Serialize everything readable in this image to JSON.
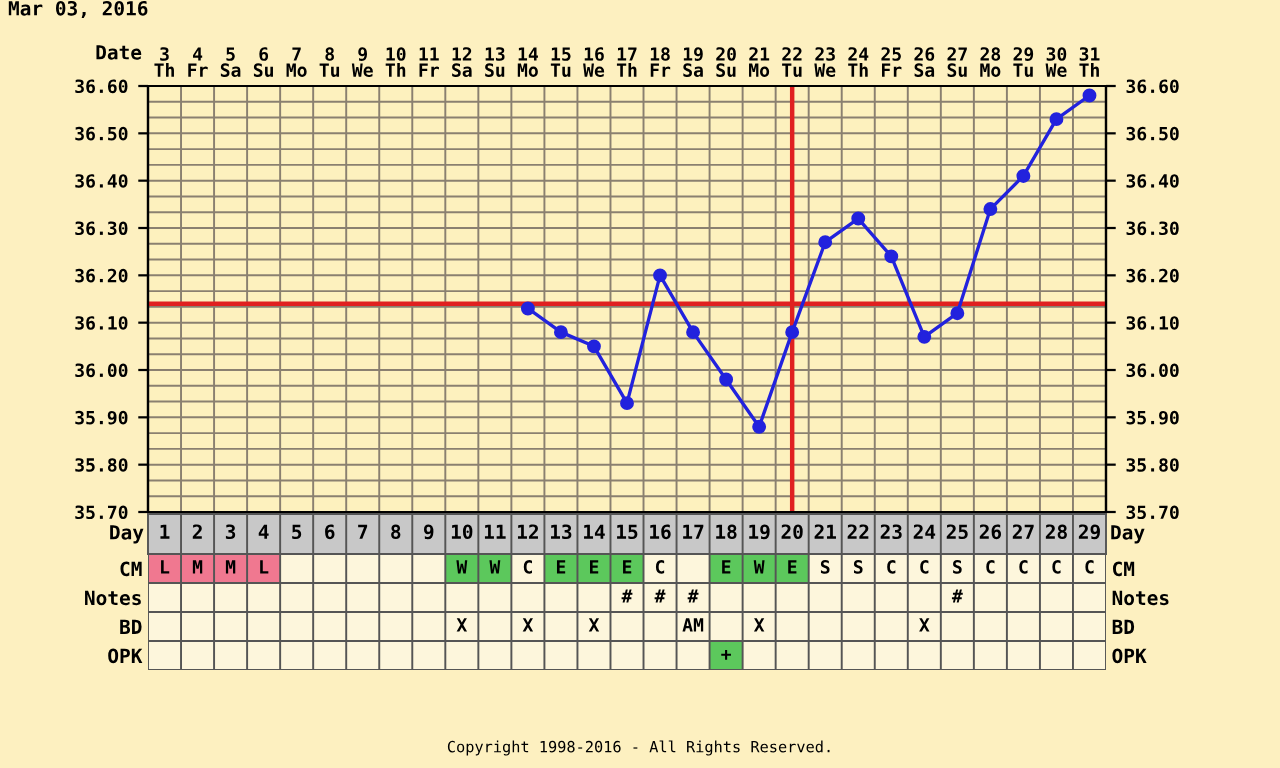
{
  "chart_data": [
    {
      "type": "line",
      "title": "Mar 03, 2016",
      "xlabel": "Date",
      "categories": [
        "3\nTh",
        "4\nFr",
        "5\nSa",
        "6\nSu",
        "7\nMo",
        "8\nTu",
        "9\nWe",
        "10\nTh",
        "11\nFr",
        "12\nSa",
        "13\nSu",
        "14\nMo",
        "15\nTu",
        "16\nWe",
        "17\nTh",
        "18\nFr",
        "19\nSa",
        "20\nSu",
        "21\nMo",
        "22\nTu",
        "23\nWe",
        "24\nTh",
        "25\nFr",
        "26\nSa",
        "27\nSu",
        "28\nMo",
        "29\nTu",
        "30\nWe",
        "31\nTh"
      ],
      "series": [
        {
          "color": "#2222dd",
          "values": [
            null,
            null,
            null,
            null,
            null,
            null,
            null,
            null,
            null,
            null,
            null,
            36.13,
            36.08,
            36.05,
            35.93,
            36.2,
            36.08,
            35.98,
            35.88,
            36.08,
            36.27,
            36.32,
            36.24,
            36.07,
            36.12,
            36.34,
            36.41,
            36.53,
            36.58
          ]
        }
      ],
      "marker": "circle",
      "line_style": "solid",
      "ylim": [
        35.7,
        36.6
      ],
      "yticks": [
        {
          "value": 35.7,
          "label": "35.70"
        },
        {
          "value": 35.8,
          "label": "35.80"
        },
        {
          "value": 35.9,
          "label": "35.90"
        },
        {
          "value": 36.0,
          "label": "36.00"
        },
        {
          "value": 36.1,
          "label": "36.10"
        },
        {
          "value": 36.2,
          "label": "36.20"
        },
        {
          "value": 36.3,
          "label": "36.30"
        },
        {
          "value": 36.4,
          "label": "36.40"
        },
        {
          "value": 36.5,
          "label": "36.50"
        },
        {
          "value": 36.6,
          "label": "36.60"
        }
      ],
      "y2lim": [
        35.7,
        36.6
      ],
      "y2ticks": [
        {
          "value": 35.7,
          "label": "35.70"
        },
        {
          "value": 35.8,
          "label": "35.80"
        },
        {
          "value": 35.9,
          "label": "35.90"
        },
        {
          "value": 36.0,
          "label": "36.00"
        },
        {
          "value": 36.1,
          "label": "36.10"
        },
        {
          "value": 36.2,
          "label": "36.20"
        },
        {
          "value": 36.3,
          "label": "36.30"
        },
        {
          "value": 36.4,
          "label": "36.40"
        },
        {
          "value": 36.5,
          "label": "36.50"
        },
        {
          "value": 36.6,
          "label": "36.60"
        }
      ],
      "grid": true,
      "ref_lines": [
        {
          "axis": "y",
          "value": 36.14,
          "color": "#e02020"
        },
        {
          "axis": "x",
          "value": "22\nTu",
          "color": "#e02020"
        }
      ]
    },
    {
      "type": "heatmap",
      "xlabel": "Day",
      "cells": [
        [
          null,
          null,
          null,
          null,
          null,
          null,
          null,
          null,
          null,
          null,
          null,
          null,
          null,
          null,
          null,
          null,
          null,
          null,
          null,
          null,
          null,
          null,
          null,
          null,
          null,
          null,
          null,
          null,
          null
        ],
        [
          null,
          null,
          null,
          null,
          null,
          null,
          null,
          null,
          null,
          null,
          null,
          null,
          null,
          null,
          null,
          null,
          null,
          null,
          null,
          null,
          null,
          null,
          null,
          null,
          null,
          null,
          null,
          null,
          null
        ],
        [
          null,
          null,
          null,
          null,
          null,
          null,
          null,
          null,
          null,
          null,
          null,
          null,
          null,
          null,
          null,
          null,
          null,
          null,
          null,
          null,
          null,
          null,
          null,
          null,
          null,
          null,
          null,
          null,
          null
        ],
        [
          null,
          null,
          null,
          null,
          null,
          null,
          null,
          null,
          null,
          null,
          null,
          null,
          null,
          null,
          null,
          null,
          null,
          null,
          null,
          null,
          null,
          null,
          null,
          null,
          null,
          null,
          null,
          null,
          null
        ]
      ],
      "categories": [
        "1",
        "2",
        "3",
        "4",
        "5",
        "6",
        "7",
        "8",
        "9",
        "10",
        "11",
        "12",
        "13",
        "14",
        "15",
        "16",
        "17",
        "18",
        "19",
        "20",
        "21",
        "22",
        "23",
        "24",
        "25",
        "26",
        "27",
        "28",
        "29"
      ],
      "y_categories": [
        "CM",
        "Notes",
        "BD",
        "OPK"
      ],
      "y2_categories": [
        "CM",
        "Notes",
        "BD",
        "OPK"
      ],
      "cell_labels": [
        [
          "L",
          "M",
          "M",
          "L",
          null,
          null,
          null,
          null,
          null,
          "W",
          "W",
          "C",
          "E",
          "E",
          "E",
          "C",
          null,
          "E",
          "W",
          "E",
          "S",
          "S",
          "C",
          "C",
          "S",
          "C",
          "C",
          "C",
          "C"
        ],
        [
          null,
          null,
          null,
          null,
          null,
          null,
          null,
          null,
          null,
          null,
          null,
          null,
          null,
          null,
          "#",
          "#",
          "#",
          null,
          null,
          null,
          null,
          null,
          null,
          null,
          "#",
          null,
          null,
          null,
          null
        ],
        [
          null,
          null,
          null,
          null,
          null,
          null,
          null,
          null,
          null,
          "X",
          null,
          "X",
          null,
          "X",
          null,
          null,
          "AM",
          null,
          "X",
          null,
          null,
          null,
          null,
          "X",
          null,
          null,
          null,
          null,
          null
        ],
        [
          null,
          null,
          null,
          null,
          null,
          null,
          null,
          null,
          null,
          null,
          null,
          null,
          null,
          null,
          null,
          null,
          null,
          "+",
          null,
          null,
          null,
          null,
          null,
          null,
          null,
          null,
          null,
          null,
          null
        ]
      ],
      "colors": [
        [
          "#f07890",
          "#f07890",
          "#f07890",
          "#f07890",
          null,
          null,
          null,
          null,
          null,
          "#5cc85c",
          "#5cc85c",
          null,
          "#5cc85c",
          "#5cc85c",
          "#5cc85c",
          null,
          null,
          "#5cc85c",
          "#5cc85c",
          "#5cc85c",
          null,
          null,
          null,
          null,
          null,
          null,
          null,
          null,
          null
        ],
        [
          null,
          null,
          null,
          null,
          null,
          null,
          null,
          null,
          null,
          null,
          null,
          null,
          null,
          null,
          null,
          null,
          null,
          null,
          null,
          null,
          null,
          null,
          null,
          null,
          null,
          null,
          null,
          null,
          null
        ],
        [
          null,
          null,
          null,
          null,
          null,
          null,
          null,
          null,
          null,
          null,
          null,
          null,
          null,
          null,
          null,
          null,
          null,
          null,
          null,
          null,
          null,
          null,
          null,
          null,
          null,
          null,
          null,
          null,
          null
        ],
        [
          null,
          null,
          null,
          null,
          null,
          null,
          null,
          null,
          null,
          null,
          null,
          null,
          null,
          null,
          null,
          null,
          null,
          "#5cc85c",
          null,
          null,
          null,
          null,
          null,
          null,
          null,
          null,
          null,
          null,
          null
        ]
      ],
      "annotations": [
        "Copyright 1998-2016 - All Rights Reserved."
      ]
    }
  ]
}
